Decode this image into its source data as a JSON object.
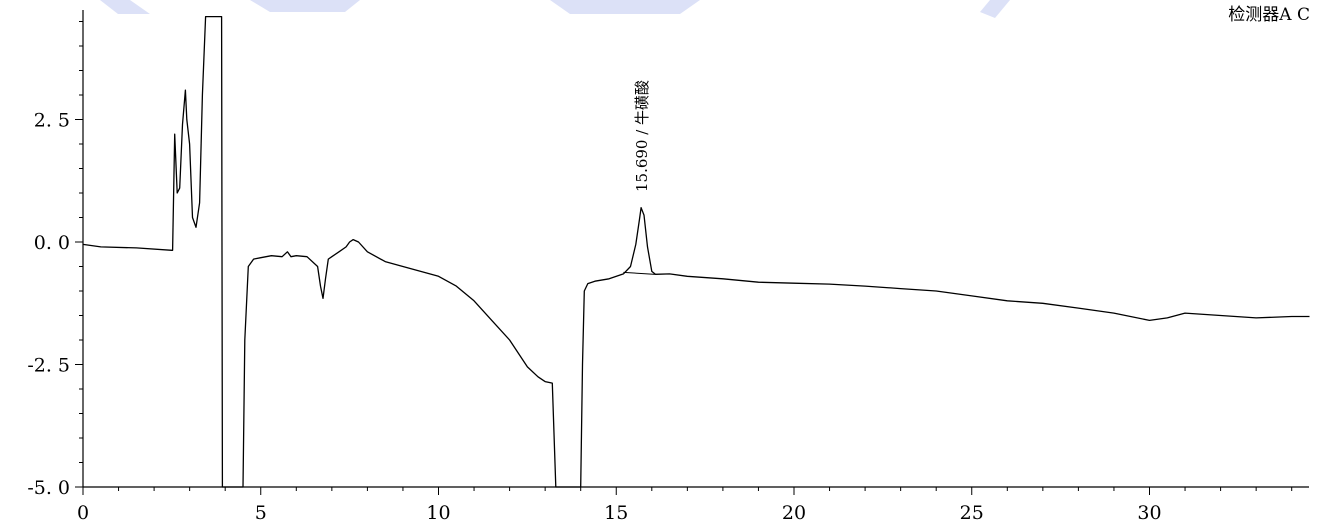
{
  "chart_data": {
    "type": "line",
    "title": "",
    "xlabel": "",
    "ylabel": "",
    "xlim": [
      0,
      34.5
    ],
    "ylim": [
      -5.0,
      4.6
    ],
    "grid": false,
    "legend": "none",
    "x_ticks": [
      "0",
      "5",
      "10",
      "15",
      "20",
      "25",
      "30"
    ],
    "y_ticks": [
      "-5.0",
      "-2.5",
      "0.0",
      "2.5"
    ],
    "detector_label": "检测器A C",
    "peak_annotation": {
      "rt": 15.69,
      "label": "15.690 / 牛磺酸"
    },
    "series": [
      {
        "x": [
          0.0,
          0.5,
          1.5,
          2.5,
          2.52,
          2.58,
          2.65,
          2.72,
          2.8,
          2.88,
          2.92,
          3.0,
          3.08,
          3.18,
          3.28,
          3.36,
          3.45,
          3.52,
          3.6,
          3.9,
          3.92,
          3.96,
          4.0,
          4.4,
          4.5,
          4.55,
          4.65,
          4.8,
          5.0,
          5.3,
          5.6,
          5.75,
          5.85,
          6.0,
          6.3,
          6.6,
          6.68,
          6.75,
          6.82,
          6.9,
          7.0,
          7.2,
          7.4,
          7.5,
          7.6,
          7.75,
          8.0,
          8.5,
          9.0,
          9.5,
          10.0,
          10.5,
          11.0,
          11.5,
          12.0,
          12.5,
          12.8,
          13.0,
          13.2,
          13.3,
          13.35,
          13.4,
          13.9,
          14.0,
          14.05,
          14.1,
          14.2,
          14.4,
          14.8,
          15.2,
          15.4,
          15.55,
          15.65,
          15.7,
          15.78,
          15.88,
          16.0,
          16.1,
          16.5,
          17.0,
          18.0,
          19.0,
          20.0,
          21.0,
          22.0,
          23.0,
          24.0,
          25.0,
          26.0,
          27.0,
          28.0,
          29.0,
          30.0,
          30.5,
          31.0,
          32.0,
          33.0,
          34.0,
          34.5
        ],
        "y": [
          -0.05,
          -0.1,
          -0.12,
          -0.17,
          -0.17,
          2.2,
          1.0,
          1.1,
          2.4,
          3.1,
          2.5,
          2.0,
          0.5,
          0.3,
          0.8,
          3.0,
          4.6,
          4.6,
          4.6,
          4.6,
          -5.0,
          -5.0,
          -5.0,
          -5.0,
          -5.0,
          -2.0,
          -0.5,
          -0.35,
          -0.32,
          -0.28,
          -0.3,
          -0.2,
          -0.3,
          -0.28,
          -0.3,
          -0.5,
          -0.9,
          -1.15,
          -0.75,
          -0.35,
          -0.3,
          -0.2,
          -0.1,
          0.0,
          0.05,
          0.0,
          -0.2,
          -0.4,
          -0.5,
          -0.6,
          -0.7,
          -0.9,
          -1.2,
          -1.6,
          -2.0,
          -2.55,
          -2.75,
          -2.85,
          -2.88,
          -5.0,
          -5.0,
          -5.0,
          -5.0,
          -5.0,
          -2.5,
          -1.0,
          -0.85,
          -0.8,
          -0.75,
          -0.65,
          -0.5,
          -0.05,
          0.45,
          0.7,
          0.55,
          -0.1,
          -0.6,
          -0.66,
          -0.65,
          -0.7,
          -0.75,
          -0.82,
          -0.84,
          -0.86,
          -0.9,
          -0.95,
          -1.0,
          -1.1,
          -1.2,
          -1.25,
          -1.35,
          -1.45,
          -1.6,
          -1.55,
          -1.45,
          -1.5,
          -1.55,
          -1.52,
          -1.52
        ]
      }
    ]
  }
}
